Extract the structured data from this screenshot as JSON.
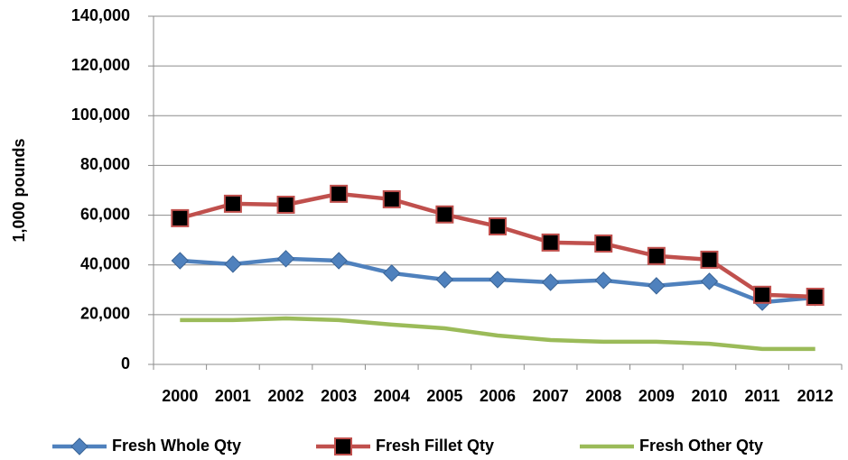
{
  "chart_data": {
    "type": "line",
    "y_label": "1,000 pounds",
    "categories": [
      "2000",
      "2001",
      "2002",
      "2003",
      "2004",
      "2005",
      "2006",
      "2007",
      "2008",
      "2009",
      "2010",
      "2011",
      "2012"
    ],
    "series": [
      {
        "name": "Fresh Whole Qty",
        "color": "#4f81bd",
        "marker": "diamond",
        "values": [
          41700,
          40300,
          42500,
          41700,
          36700,
          34100,
          34100,
          33000,
          33800,
          31600,
          33400,
          25000,
          26900
        ]
      },
      {
        "name": "Fresh Fillet Qty",
        "color": "#c0504d",
        "marker": "square",
        "values": [
          58800,
          64600,
          64200,
          68600,
          66400,
          60300,
          55500,
          49000,
          48600,
          43600,
          42100,
          28000,
          27200
        ]
      },
      {
        "name": "Fresh Other Qty",
        "color": "#9bbb59",
        "marker": "none",
        "values": [
          17800,
          17800,
          18500,
          17800,
          16000,
          14500,
          11600,
          9800,
          9100,
          9100,
          8300,
          6200,
          6200
        ]
      }
    ],
    "ylim": [
      0,
      140000
    ],
    "yticks": [
      0,
      {
        "value": 20000,
        "label": "20,000"
      },
      {
        "value": 40000,
        "label": "40,000"
      },
      {
        "value": 60000,
        "label": "60,000"
      },
      {
        "value": 80000,
        "label": "80,000"
      },
      {
        "value": 100000,
        "label": "100,000"
      },
      {
        "value": 120000,
        "label": "120,000"
      },
      {
        "value": 140000,
        "label": "140,000"
      }
    ],
    "grid": true,
    "legend": "bottom"
  }
}
